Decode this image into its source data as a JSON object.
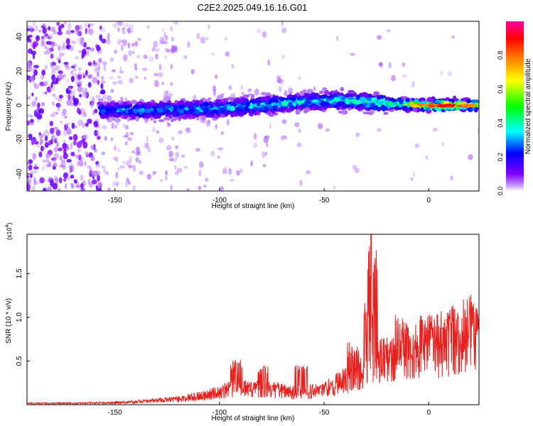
{
  "title": "C2E2.2025.049.16.16.G01",
  "colors": {
    "snr_line": "#e8201e",
    "axis": "#000000"
  },
  "chart_data": [
    {
      "type": "heatmap",
      "xlabel": "Height of straight line (km)",
      "ylabel": "Frequency (Hz)",
      "xlim": [
        -192,
        24
      ],
      "ylim": [
        -50,
        49
      ],
      "xticks": [
        -150,
        -100,
        -50,
        0
      ],
      "xtick_labels": [
        "-150",
        "-100",
        "-50",
        "0"
      ],
      "yticks": [
        -40,
        -20,
        0,
        20,
        40
      ],
      "ytick_labels": [
        "-40",
        "-20",
        "0",
        "20",
        "40"
      ],
      "colorbar": {
        "label": "Normalized spectral amplitude",
        "range": [
          0,
          1
        ],
        "ticks": [
          0.0,
          0.2,
          0.4,
          0.6,
          0.8
        ],
        "tick_labels": [
          "0.0",
          "0.2",
          "0.4",
          "0.6",
          "0.8"
        ],
        "colormap": [
          "#ffffff",
          "#7f00ff",
          "#0000ff",
          "#00ffff",
          "#00ff00",
          "#ffff00",
          "#ff8000",
          "#ff0000",
          "#ff00a0"
        ]
      },
      "band_center": [
        {
          "x": -155,
          "freq": -3
        },
        {
          "x": -130,
          "freq": -3
        },
        {
          "x": -100,
          "freq": -2
        },
        {
          "x": -80,
          "freq": 0
        },
        {
          "x": -60,
          "freq": 2
        },
        {
          "x": -40,
          "freq": 3
        },
        {
          "x": -20,
          "freq": 1
        },
        {
          "x": 0,
          "freq": 0
        },
        {
          "x": 24,
          "freq": 0
        }
      ],
      "band_peak_amplitude": [
        {
          "x": -150,
          "amp": 0.35
        },
        {
          "x": -100,
          "amp": 0.4
        },
        {
          "x": -50,
          "amp": 0.45
        },
        {
          "x": -20,
          "amp": 0.55
        },
        {
          "x": -5,
          "amp": 0.8
        },
        {
          "x": 10,
          "amp": 0.98
        },
        {
          "x": 24,
          "amp": 0.75
        }
      ],
      "grid": false
    },
    {
      "type": "line",
      "xlabel": "Height of straight line (km)",
      "ylabel": "SNR (10 * v/v)",
      "y_multiplier": "(x10",
      "y_multiplier_exp": "4",
      "y_multiplier_close": ")",
      "xlim": [
        -192,
        24
      ],
      "ylim": [
        0,
        1.95
      ],
      "xticks": [
        -150,
        -100,
        -50,
        0
      ],
      "xtick_labels": [
        "-150",
        "-100",
        "-50",
        "0"
      ],
      "yticks": [
        0.5,
        1.0,
        1.5
      ],
      "ytick_labels": [
        "0.5",
        "1.0",
        "1.5"
      ],
      "series": [
        {
          "x": [
            -192,
            -170,
            -150,
            -140,
            -130,
            -120,
            -110,
            -100,
            -90,
            -80,
            -70,
            -60,
            -50,
            -45,
            -40,
            -35,
            -30,
            -28,
            -27.5,
            -27,
            -25,
            -20,
            -15,
            -10,
            -5,
            0,
            5,
            10,
            15,
            20,
            24
          ],
          "y": [
            0.02,
            0.02,
            0.03,
            0.04,
            0.06,
            0.08,
            0.12,
            0.18,
            0.25,
            0.22,
            0.2,
            0.18,
            0.22,
            0.28,
            0.35,
            0.42,
            0.5,
            0.7,
            1.95,
            0.7,
            0.6,
            0.62,
            0.7,
            0.75,
            0.78,
            0.8,
            0.85,
            0.9,
            0.95,
            1.02,
            1.08
          ],
          "peaks": [
            {
              "x": -92,
              "y": 0.52
            },
            {
              "x": -79,
              "y": 0.46
            },
            {
              "x": -61,
              "y": 0.48
            },
            {
              "x": -36,
              "y": 0.72
            },
            {
              "x": -28,
              "y": 1.18
            },
            {
              "x": -27.5,
              "y": 1.95
            },
            {
              "x": -13,
              "y": 1.05
            },
            {
              "x": -1,
              "y": 1.05
            },
            {
              "x": 11,
              "y": 1.12
            },
            {
              "x": 22,
              "y": 1.18
            }
          ]
        }
      ],
      "grid": false
    }
  ]
}
